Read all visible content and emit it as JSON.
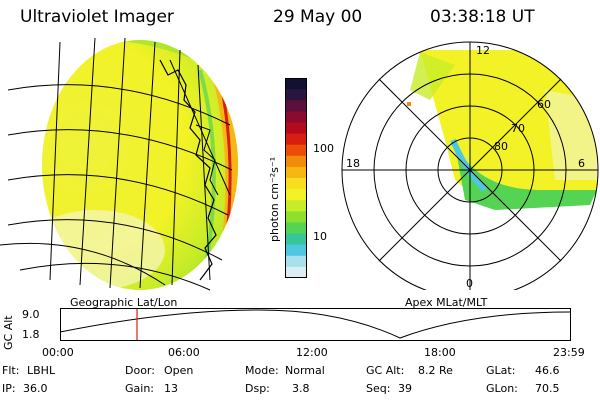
{
  "header": {
    "instrument": "Ultraviolet Imager",
    "date": "29 May 00",
    "time": "03:38:18 UT"
  },
  "colorbar": {
    "unit_label": "photon cm⁻²s⁻¹",
    "ticks": [
      "100",
      "10"
    ],
    "colors": [
      "#111133",
      "#2a1440",
      "#5a0f3c",
      "#8a0b2e",
      "#b40a1e",
      "#d81e10",
      "#ec4d0a",
      "#f08c0c",
      "#f6b713",
      "#f8df1e",
      "#f2f226",
      "#c8ec28",
      "#8fe02e",
      "#55d453",
      "#35c79a",
      "#4ec8e0",
      "#a8e0ec",
      "#dceef2"
    ]
  },
  "left_map": {
    "caption": "Geographic Lat/Lon"
  },
  "right_map": {
    "caption": "Apex MLat/MLT",
    "mlt_labels": {
      "top": "12",
      "left": "18",
      "right": "6",
      "bottom": "0"
    },
    "lat_labels": [
      "80",
      "70",
      "60"
    ]
  },
  "altitude_plot": {
    "ylabel": "GC Alt",
    "y_ticks": [
      "9.0",
      "1.8"
    ],
    "x_ticks": [
      "00:00",
      "06:00",
      "12:00",
      "18:00",
      "23:59"
    ]
  },
  "status": {
    "flt_label": "Flt:",
    "flt_value": "LBHL",
    "door_label": "Door:",
    "door_value": "Open",
    "mode_label": "Mode:",
    "mode_value": "Normal",
    "gcalt_label": "GC Alt:",
    "gcalt_value": "8.2 Re",
    "glat_label": "GLat:",
    "glat_value": "46.6",
    "ip_label": "IP:",
    "ip_value": "36.0",
    "gain_label": "Gain:",
    "gain_value": "13",
    "dsp_label": "Dsp:",
    "dsp_value": "3.8",
    "seq_label": "Seq:",
    "seq_value": "39",
    "glon_label": "GLon:",
    "glon_value": "70.5"
  }
}
